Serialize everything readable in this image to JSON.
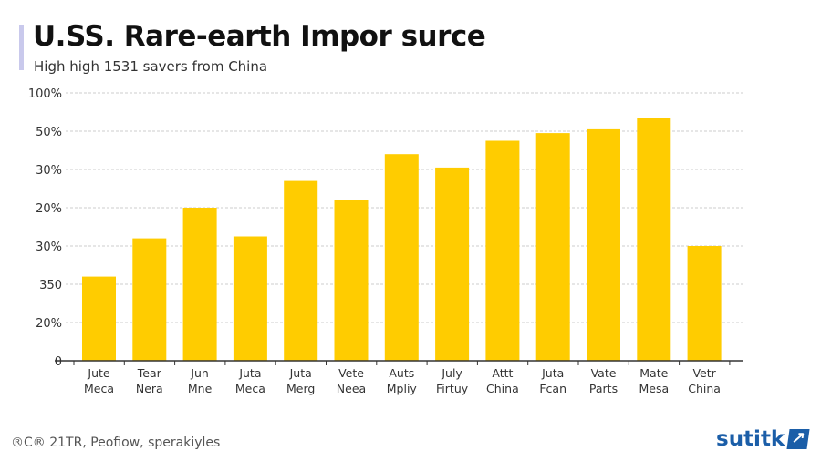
{
  "title": "U.SS. Rare-earth Impor surce",
  "subtitle": "High high 1531 savers from China",
  "footer": {
    "credits": "®C® 21TR, Peofiow, sperakiyles",
    "logo": "sutitk"
  },
  "chart_data": {
    "type": "bar",
    "title": "U.SS. Rare-earth Impor surce",
    "subtitle": "High high 1531 savers from China",
    "y_tick_labels": [
      "0",
      "20%",
      "350",
      "30%",
      "20%",
      "30%",
      "50%",
      "100%"
    ],
    "ylim": [
      0,
      7
    ],
    "grid": true,
    "bar_color": "#FFCC00",
    "categories": [
      [
        "Jute",
        "Meca"
      ],
      [
        "Tear",
        "Nera"
      ],
      [
        "Jun",
        "Mne"
      ],
      [
        "Juta",
        "Meca"
      ],
      [
        "Juta",
        "Merg"
      ],
      [
        "Vete",
        "Neea"
      ],
      [
        "Auts",
        "Mpliy"
      ],
      [
        "July",
        "Firtuy"
      ],
      [
        "Attt",
        "China"
      ],
      [
        "Juta",
        "Fcan"
      ],
      [
        "Vate",
        "Parts"
      ],
      [
        "Mate",
        "Mesa"
      ],
      [
        "Vetr",
        "China"
      ]
    ],
    "values": [
      2.2,
      3.2,
      4.0,
      3.25,
      4.7,
      4.2,
      5.4,
      5.05,
      5.75,
      5.95,
      6.05,
      6.35,
      3.0
    ]
  }
}
